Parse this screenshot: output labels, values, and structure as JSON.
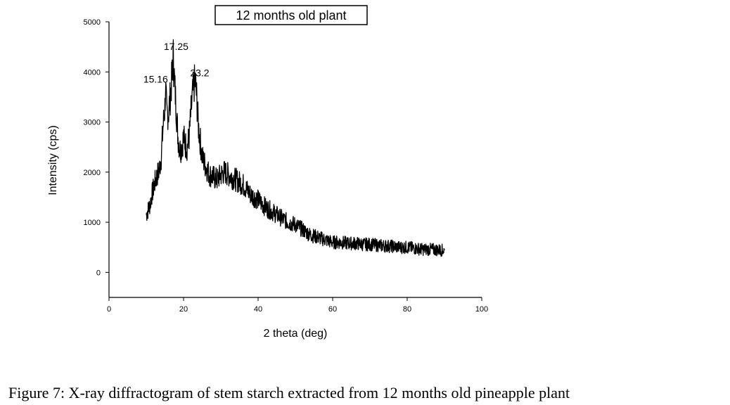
{
  "chart_data": {
    "type": "line",
    "title": "12 months old plant",
    "xlabel": "2 theta (deg)",
    "ylabel": "Intensity (cps)",
    "xlim": [
      0,
      100
    ],
    "ylim": [
      -500,
      5000
    ],
    "xticks": [
      0,
      20,
      40,
      60,
      80,
      100
    ],
    "yticks": [
      0,
      1000,
      2000,
      3000,
      4000,
      5000
    ],
    "grid": false,
    "legend": "none",
    "line_color": "#000000",
    "annotations": [
      {
        "text": "15.16",
        "x": 15.16,
        "y": 3700
      },
      {
        "text": "17.25",
        "x": 17.25,
        "y": 4300
      },
      {
        "text": "23.2",
        "x": 23.2,
        "y": 3800
      }
    ],
    "series": [
      {
        "x": [
          10,
          10.5,
          11,
          11.5,
          12,
          12.5,
          13,
          13.5,
          14,
          14.5,
          15,
          15.16,
          15.5,
          16,
          16.5,
          17,
          17.25,
          17.5,
          18,
          18.5,
          19,
          19.5,
          20,
          20.5,
          21,
          21.5,
          22,
          22.5,
          23,
          23.2,
          23.5,
          24,
          24.5,
          25,
          26,
          27,
          28,
          29,
          30,
          31,
          32,
          33,
          34,
          35,
          36,
          37,
          38,
          39,
          40,
          42,
          44,
          46,
          48,
          50,
          52,
          54,
          56,
          58,
          60,
          62,
          64,
          66,
          68,
          70,
          72,
          74,
          76,
          78,
          80,
          82,
          84,
          86,
          88,
          90
        ],
        "y": [
          1150,
          1250,
          1350,
          1550,
          1700,
          1850,
          1950,
          2050,
          2300,
          2900,
          3300,
          3700,
          3150,
          3200,
          3550,
          4000,
          4300,
          3900,
          3300,
          2700,
          2450,
          2500,
          2700,
          2550,
          2500,
          2700,
          3200,
          3600,
          3800,
          3780,
          3500,
          2900,
          2600,
          2300,
          2100,
          1950,
          1900,
          1850,
          1950,
          2000,
          1950,
          1900,
          1850,
          1800,
          1750,
          1650,
          1550,
          1500,
          1450,
          1300,
          1200,
          1100,
          1000,
          950,
          850,
          750,
          700,
          650,
          600,
          600,
          580,
          580,
          560,
          560,
          540,
          530,
          520,
          500,
          500,
          480,
          460,
          460,
          450,
          440
        ]
      }
    ]
  },
  "caption": "Figure 7:  X-ray diffractogram of stem starch extracted from 12 months old pineapple plant"
}
